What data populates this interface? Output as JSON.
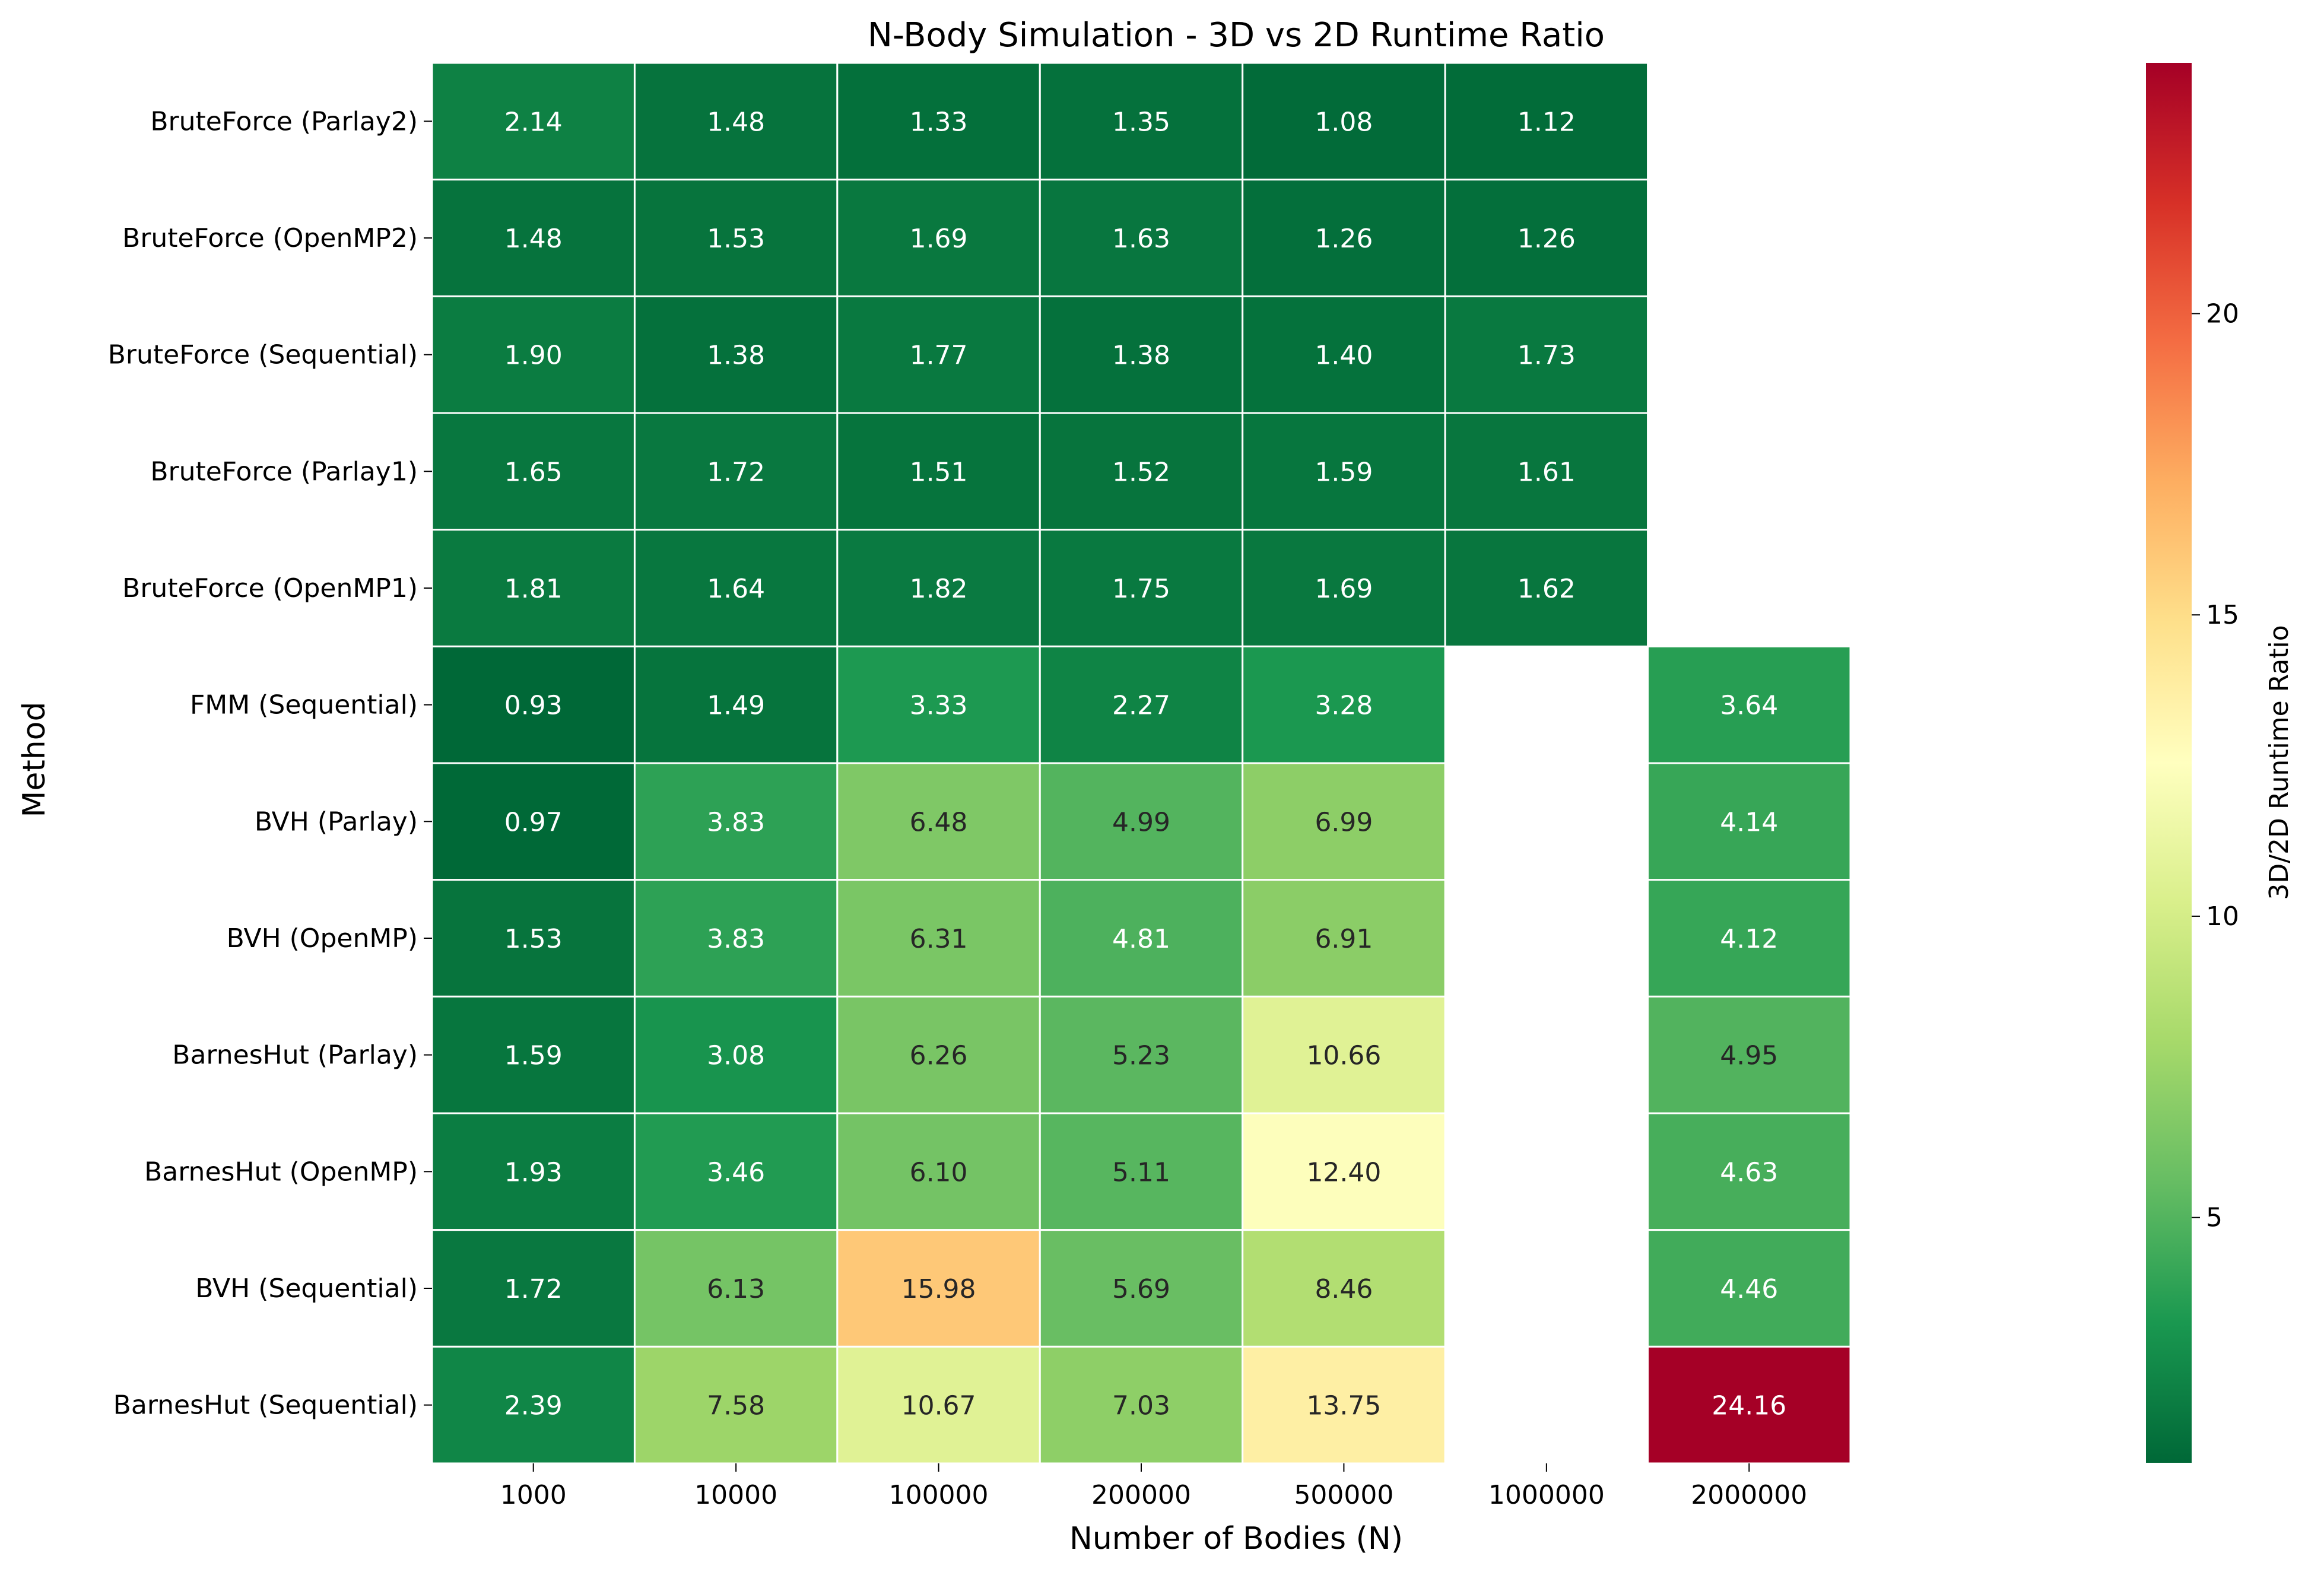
{
  "chart_data": {
    "type": "heatmap",
    "title": "N-Body Simulation - 3D vs 2D Runtime Ratio",
    "xlabel": "Number of Bodies (N)",
    "ylabel": "Method",
    "x_categories": [
      "1000",
      "10000",
      "100000",
      "200000",
      "500000",
      "1000000",
      "2000000"
    ],
    "y_categories": [
      "BruteForce (Parlay2)",
      "BruteForce (OpenMP2)",
      "BruteForce (Sequential)",
      "BruteForce (Parlay1)",
      "BruteForce (OpenMP1)",
      "FMM (Sequential)",
      "BVH (Parlay)",
      "BVH (OpenMP)",
      "BarnesHut (Parlay)",
      "BarnesHut (OpenMP)",
      "BVH (Sequential)",
      "BarnesHut (Sequential)"
    ],
    "values": [
      [
        2.14,
        1.48,
        1.33,
        1.35,
        1.08,
        1.12,
        null
      ],
      [
        1.48,
        1.53,
        1.69,
        1.63,
        1.26,
        1.26,
        null
      ],
      [
        1.9,
        1.38,
        1.77,
        1.38,
        1.4,
        1.73,
        null
      ],
      [
        1.65,
        1.72,
        1.51,
        1.52,
        1.59,
        1.61,
        null
      ],
      [
        1.81,
        1.64,
        1.82,
        1.75,
        1.69,
        1.62,
        null
      ],
      [
        0.93,
        1.49,
        3.33,
        2.27,
        3.28,
        null,
        3.64
      ],
      [
        0.97,
        3.83,
        6.48,
        4.99,
        6.99,
        null,
        4.14
      ],
      [
        1.53,
        3.83,
        6.31,
        4.81,
        6.91,
        null,
        4.12
      ],
      [
        1.59,
        3.08,
        6.26,
        5.23,
        10.66,
        null,
        4.95
      ],
      [
        1.93,
        3.46,
        6.1,
        5.11,
        12.4,
        null,
        4.63
      ],
      [
        1.72,
        6.13,
        15.98,
        5.69,
        8.46,
        null,
        4.46
      ],
      [
        2.39,
        7.58,
        10.67,
        7.03,
        13.75,
        null,
        24.16
      ]
    ],
    "value_format": "2 decimals",
    "colormap": "RdYlGn_r",
    "color_range": [
      0.93,
      24.16
    ],
    "colorbar": {
      "label": "3D/2D Runtime Ratio",
      "ticks": [
        "5",
        "10",
        "15",
        "20"
      ]
    },
    "cell_borders": "#ffffff",
    "missing_cells": "blank"
  }
}
